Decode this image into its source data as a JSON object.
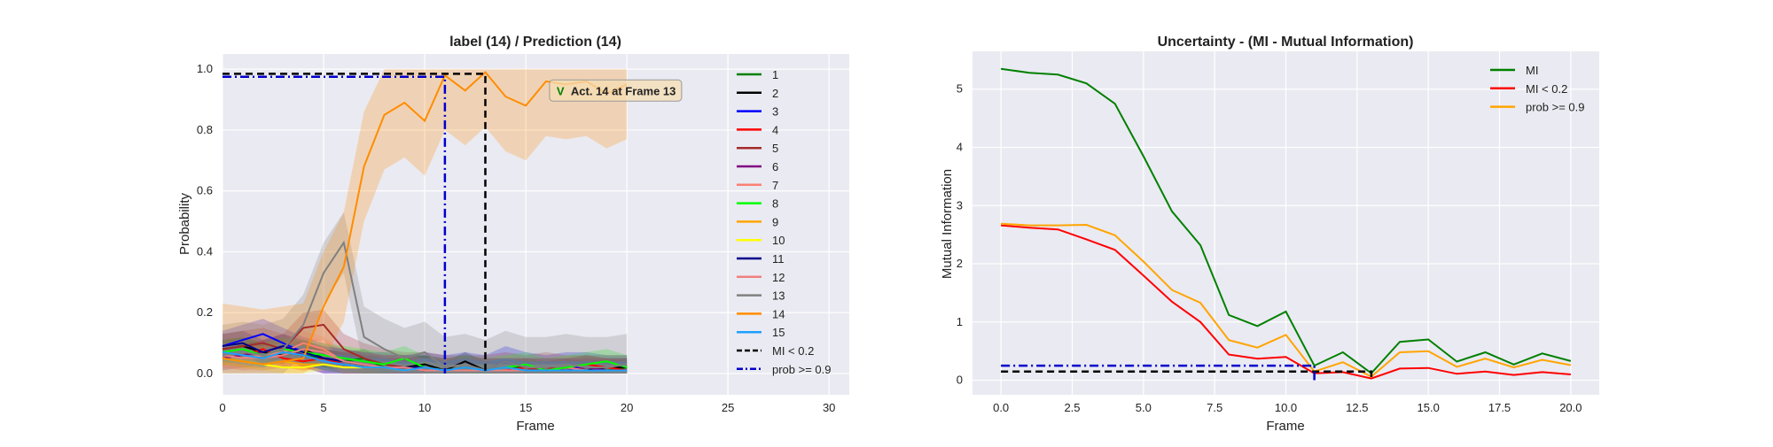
{
  "chart_data": [
    {
      "type": "line",
      "title": "label (14) / Prediction (14)",
      "xlabel": "Frame",
      "ylabel": "Probability",
      "xlim": [
        0,
        31
      ],
      "ylim": [
        -0.07,
        1.05
      ],
      "xticks": [
        0,
        5,
        10,
        15,
        20,
        25,
        30
      ],
      "yticks": [
        0.0,
        0.2,
        0.4,
        0.6,
        0.8,
        1.0
      ],
      "grid": true,
      "legend_position": "right",
      "x": [
        0,
        1,
        2,
        3,
        4,
        5,
        6,
        7,
        8,
        9,
        10,
        11,
        12,
        13,
        14,
        15,
        16,
        17,
        18,
        19,
        20
      ],
      "series": [
        {
          "name": "1",
          "color": "#008000",
          "values": [
            0.06,
            0.05,
            0.05,
            0.07,
            0.06,
            0.05,
            0.04,
            0.05,
            0.02,
            0.02,
            0.03,
            0.01,
            0.02,
            0.01,
            0.02,
            0.02,
            0.01,
            0.01,
            0.02,
            0.01,
            0.02
          ],
          "spread": 0.03
        },
        {
          "name": "2",
          "color": "#000000",
          "values": [
            0.08,
            0.09,
            0.07,
            0.06,
            0.08,
            0.05,
            0.04,
            0.03,
            0.02,
            0.02,
            0.03,
            0.01,
            0.04,
            0.01,
            0.02,
            0.01,
            0.01,
            0.02,
            0.01,
            0.02,
            0.02
          ],
          "spread": 0.03
        },
        {
          "name": "3",
          "color": "#0000ff",
          "values": [
            0.09,
            0.11,
            0.13,
            0.1,
            0.07,
            0.05,
            0.03,
            0.02,
            0.02,
            0.01,
            0.02,
            0.01,
            0.02,
            0.01,
            0.04,
            0.02,
            0.01,
            0.02,
            0.02,
            0.01,
            0.01
          ],
          "spread": 0.05
        },
        {
          "name": "4",
          "color": "#ff0000",
          "values": [
            0.07,
            0.06,
            0.08,
            0.05,
            0.04,
            0.05,
            0.03,
            0.02,
            0.02,
            0.02,
            0.01,
            0.01,
            0.02,
            0.01,
            0.01,
            0.02,
            0.01,
            0.02,
            0.03,
            0.02,
            0.01
          ],
          "spread": 0.03
        },
        {
          "name": "5",
          "color": "#a52a2a",
          "values": [
            0.08,
            0.09,
            0.1,
            0.08,
            0.15,
            0.16,
            0.08,
            0.05,
            0.03,
            0.02,
            0.02,
            0.01,
            0.01,
            0.01,
            0.02,
            0.01,
            0.02,
            0.01,
            0.01,
            0.01,
            0.01
          ],
          "spread": 0.05
        },
        {
          "name": "6",
          "color": "#800080",
          "values": [
            0.05,
            0.06,
            0.07,
            0.09,
            0.06,
            0.04,
            0.03,
            0.02,
            0.02,
            0.02,
            0.01,
            0.01,
            0.02,
            0.01,
            0.01,
            0.01,
            0.01,
            0.01,
            0.02,
            0.01,
            0.01
          ],
          "spread": 0.04
        },
        {
          "name": "7",
          "color": "#fa8072",
          "values": [
            0.06,
            0.05,
            0.06,
            0.07,
            0.1,
            0.08,
            0.04,
            0.03,
            0.02,
            0.02,
            0.02,
            0.01,
            0.01,
            0.01,
            0.02,
            0.01,
            0.01,
            0.02,
            0.01,
            0.01,
            0.01
          ],
          "spread": 0.04
        },
        {
          "name": "8",
          "color": "#00ff00",
          "values": [
            0.07,
            0.08,
            0.06,
            0.08,
            0.07,
            0.06,
            0.05,
            0.04,
            0.03,
            0.05,
            0.02,
            0.01,
            0.02,
            0.01,
            0.02,
            0.03,
            0.01,
            0.02,
            0.03,
            0.04,
            0.02
          ],
          "spread": 0.04
        },
        {
          "name": "9",
          "color": "#ffa500",
          "values": [
            0.05,
            0.04,
            0.03,
            0.04,
            0.03,
            0.03,
            0.02,
            0.02,
            0.02,
            0.01,
            0.02,
            0.01,
            0.01,
            0.01,
            0.01,
            0.01,
            0.01,
            0.01,
            0.01,
            0.01,
            0.01
          ],
          "spread": 0.02
        },
        {
          "name": "10",
          "color": "#ffff00",
          "values": [
            0.05,
            0.04,
            0.03,
            0.02,
            0.02,
            0.03,
            0.02,
            0.02,
            0.02,
            0.01,
            0.02,
            0.01,
            0.01,
            0.01,
            0.01,
            0.01,
            0.01,
            0.01,
            0.01,
            0.01,
            0.01
          ],
          "spread": 0.02
        },
        {
          "name": "11",
          "color": "#00008b",
          "values": [
            0.09,
            0.1,
            0.07,
            0.09,
            0.07,
            0.05,
            0.04,
            0.03,
            0.02,
            0.02,
            0.02,
            0.01,
            0.01,
            0.01,
            0.01,
            0.01,
            0.01,
            0.01,
            0.01,
            0.01,
            0.01
          ],
          "spread": 0.04
        },
        {
          "name": "12",
          "color": "#f08080",
          "values": [
            0.06,
            0.05,
            0.05,
            0.06,
            0.08,
            0.07,
            0.04,
            0.03,
            0.02,
            0.02,
            0.01,
            0.01,
            0.01,
            0.01,
            0.01,
            0.01,
            0.01,
            0.01,
            0.01,
            0.01,
            0.01
          ],
          "spread": 0.04
        },
        {
          "name": "13",
          "color": "#808080",
          "values": [
            0.06,
            0.07,
            0.06,
            0.08,
            0.16,
            0.33,
            0.43,
            0.12,
            0.08,
            0.05,
            0.07,
            0.02,
            0.03,
            0.01,
            0.04,
            0.02,
            0.02,
            0.03,
            0.02,
            0.02,
            0.03
          ],
          "spread": 0.1
        },
        {
          "name": "14",
          "color": "#ff8c00",
          "values": [
            0.05,
            0.04,
            0.03,
            0.04,
            0.05,
            0.22,
            0.35,
            0.68,
            0.85,
            0.89,
            0.83,
            0.98,
            0.93,
            0.99,
            0.91,
            0.88,
            0.96,
            0.95,
            0.96,
            0.92,
            0.95
          ],
          "spread": 0.18
        },
        {
          "name": "15",
          "color": "#1ea0ff",
          "values": [
            0.07,
            0.06,
            0.05,
            0.07,
            0.06,
            0.04,
            0.03,
            0.02,
            0.02,
            0.01,
            0.02,
            0.01,
            0.02,
            0.01,
            0.02,
            0.01,
            0.01,
            0.01,
            0.01,
            0.01,
            0.01
          ],
          "spread": 0.03
        }
      ],
      "thresholds": [
        {
          "name": "MI < 0.2",
          "color": "#000000",
          "style": "dashed",
          "frame": 13,
          "level": 0.985
        },
        {
          "name": "prob >= 0.9",
          "color": "#0000cd",
          "style": "dashdot",
          "frame": 11,
          "level": 0.975
        }
      ],
      "annotation": {
        "check": "V",
        "text": "Act. 14 at Frame 13",
        "x": 16,
        "y": 0.93
      }
    },
    {
      "type": "line",
      "title": "Uncertainty - (MI - Mutual Information)",
      "xlabel": "Frame",
      "ylabel": "Mutual Information",
      "xlim": [
        -1,
        21
      ],
      "ylim": [
        -0.25,
        5.65
      ],
      "xticks": [
        "0.0",
        "2.5",
        "5.0",
        "7.5",
        "10.0",
        "12.5",
        "15.0",
        "17.5",
        "20.0"
      ],
      "yticks": [
        0,
        1,
        2,
        3,
        4,
        5
      ],
      "grid": true,
      "legend_position": "top-right",
      "x": [
        0,
        1,
        2,
        3,
        4,
        5,
        6,
        7,
        8,
        9,
        10,
        11,
        12,
        13,
        14,
        15,
        16,
        17,
        18,
        19,
        20
      ],
      "series": [
        {
          "name": "MI",
          "color": "#008000",
          "values": [
            5.35,
            5.28,
            5.25,
            5.1,
            4.75,
            3.85,
            2.9,
            2.32,
            1.12,
            0.93,
            1.18,
            0.25,
            0.48,
            0.12,
            0.66,
            0.7,
            0.32,
            0.48,
            0.27,
            0.46,
            0.33
          ]
        },
        {
          "name": "MI < 0.2",
          "color": "#ff0000",
          "values": [
            2.66,
            2.62,
            2.59,
            2.42,
            2.24,
            1.8,
            1.35,
            1.0,
            0.44,
            0.37,
            0.4,
            0.12,
            0.14,
            0.03,
            0.2,
            0.21,
            0.11,
            0.15,
            0.09,
            0.14,
            0.1
          ]
        },
        {
          "name": "prob >= 0.9",
          "color": "#ffa500",
          "values": [
            2.69,
            2.66,
            2.66,
            2.67,
            2.49,
            2.04,
            1.55,
            1.33,
            0.69,
            0.56,
            0.78,
            0.15,
            0.31,
            0.06,
            0.48,
            0.5,
            0.23,
            0.37,
            0.22,
            0.35,
            0.26
          ]
        }
      ],
      "thresholds": [
        {
          "name": "MI < 0.2",
          "color": "#000000",
          "style": "dashed",
          "frame": 13,
          "level": 0.15
        },
        {
          "name": "prob >= 0.9",
          "color": "#0000cd",
          "style": "dashdot",
          "frame": 11,
          "level": 0.25
        }
      ]
    }
  ]
}
